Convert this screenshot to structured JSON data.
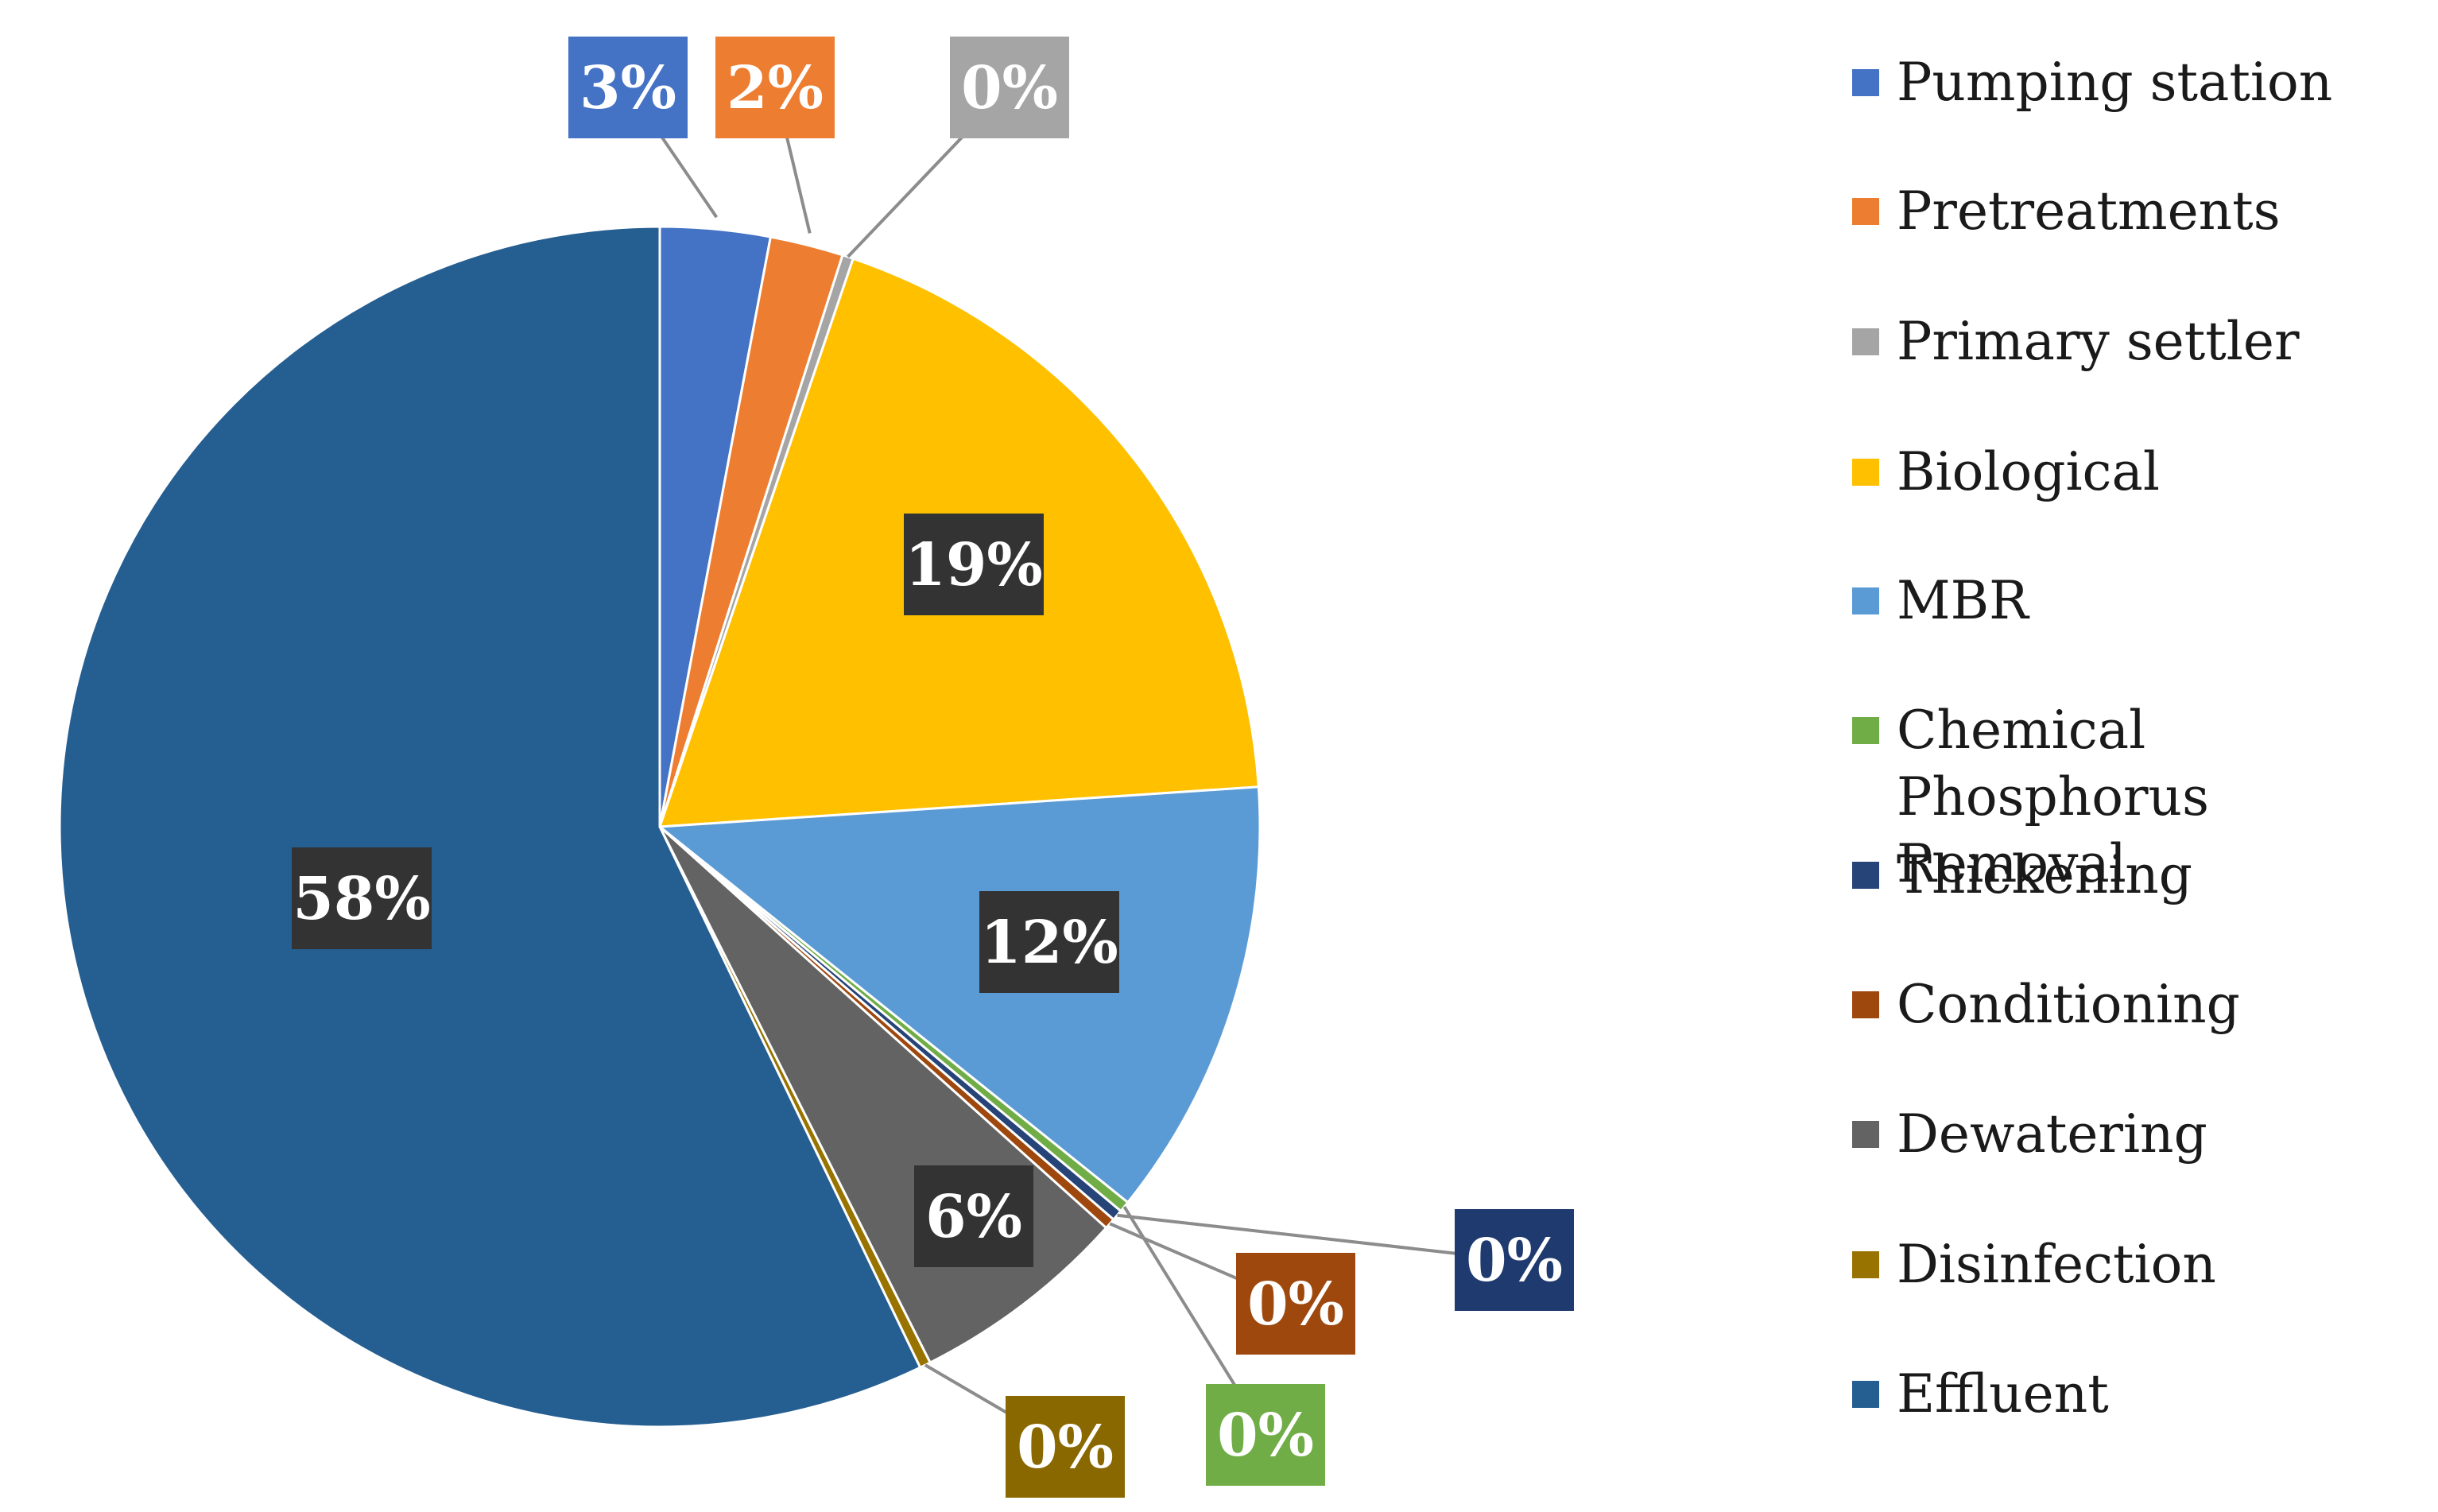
{
  "chart_data": {
    "type": "pie",
    "title": "",
    "categories": [
      "Pumping station",
      "Pretreatments",
      "Primary settler",
      "Biological",
      "MBR",
      "Chemical Phosphorus Removal",
      "Thickening",
      "Conditioning",
      "Dewatering",
      "Disinfection",
      "Effluent"
    ],
    "values": [
      3,
      2,
      0,
      19,
      12,
      0,
      0,
      0,
      6,
      0,
      58
    ],
    "value_labels": [
      "3%",
      "2%",
      "0%",
      "19%",
      "12%",
      "0%",
      "0%",
      "0%",
      "6%",
      "0%",
      "58%"
    ],
    "colors": [
      "#4472c4",
      "#ed7d31",
      "#a5a5a5",
      "#ffc000",
      "#5b9bd5",
      "#70ad47",
      "#264478",
      "#9e480e",
      "#636363",
      "#997300",
      "#255e91"
    ],
    "label_box_colors": [
      "#4472c4",
      "#ed7d31",
      "#a5a5a5",
      "#333333",
      "#333333",
      "#70ad47",
      "#1f3a6e",
      "#9e480e",
      "#333333",
      "#8a6800",
      "#333333"
    ],
    "legend_position": "right"
  }
}
